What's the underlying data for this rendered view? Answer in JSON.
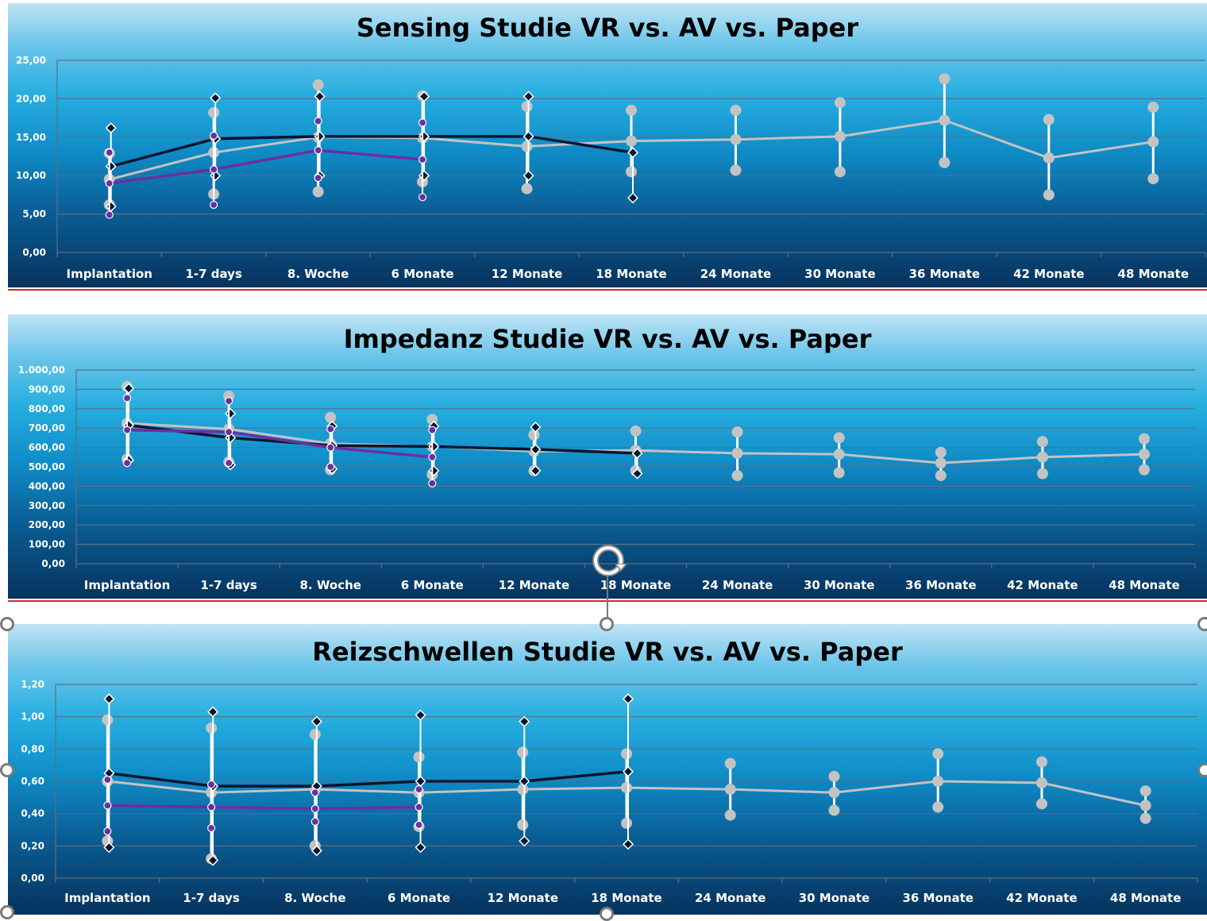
{
  "colors": {
    "vr": "#0b1530",
    "av": "#6a2fa0",
    "paper": "#c3c3c3",
    "gridline": "#5a6f86",
    "separator": "#d7262c"
  },
  "icons": {
    "rotate_handle": "rotate-icon",
    "selection_handle": "selection-handle-icon"
  },
  "chart_data": [
    {
      "type": "line",
      "title": "Sensing Studie VR vs. AV vs. Paper",
      "categories": [
        "Implantation",
        "1-7 days",
        "8. Woche",
        "6 Monate",
        "12 Monate",
        "18 Monate",
        "24 Monate",
        "30 Monate",
        "36 Monate",
        "42 Monate",
        "48 Monate"
      ],
      "ylim": [
        0,
        25
      ],
      "yticks": [
        "0,00",
        "5,00",
        "10,00",
        "15,00",
        "20,00",
        "25,00"
      ],
      "grid": true,
      "legend": "none",
      "error_bars": true,
      "series": [
        {
          "key": "vr",
          "values": [
            11.2,
            14.8,
            15.1,
            15.1,
            15.1,
            13.0,
            null,
            null,
            null,
            null,
            null
          ],
          "upper": [
            16.2,
            20.1,
            20.3,
            20.3,
            20.3,
            null,
            null,
            null,
            null,
            null,
            null
          ],
          "lower": [
            6.0,
            10.0,
            10.0,
            10.0,
            10.0,
            7.1,
            null,
            null,
            null,
            null,
            null
          ]
        },
        {
          "key": "av",
          "values": [
            9.0,
            10.8,
            13.3,
            12.1,
            null,
            null,
            null,
            null,
            null,
            null,
            null
          ],
          "upper": [
            13.0,
            15.2,
            17.1,
            16.9,
            null,
            null,
            null,
            null,
            null,
            null,
            null
          ],
          "lower": [
            4.9,
            6.2,
            9.7,
            7.2,
            null,
            null,
            null,
            null,
            null,
            null,
            null
          ]
        },
        {
          "key": "paper",
          "values": [
            9.5,
            13.0,
            15.0,
            14.9,
            13.8,
            14.5,
            14.7,
            15.1,
            17.2,
            12.3,
            14.4
          ],
          "upper": [
            12.9,
            18.2,
            21.8,
            20.4,
            19.0,
            18.5,
            18.5,
            19.5,
            22.6,
            17.3,
            18.9
          ],
          "lower": [
            6.2,
            7.6,
            7.9,
            9.2,
            8.3,
            10.5,
            10.7,
            10.5,
            11.7,
            7.5,
            9.6
          ]
        }
      ]
    },
    {
      "type": "line",
      "title": "Impedanz Studie VR vs. AV vs. Paper",
      "categories": [
        "Implantation",
        "1-7 days",
        "8. Woche",
        "6 Monate",
        "12 Monate",
        "18 Monate",
        "24 Monate",
        "30 Monate",
        "36 Monate",
        "42 Monate",
        "48 Monate"
      ],
      "ylim": [
        0,
        1000
      ],
      "yticks": [
        "0,00",
        "100,00",
        "200,00",
        "300,00",
        "400,00",
        "500,00",
        "600,00",
        "700,00",
        "800,00",
        "900,00",
        "1.000,00"
      ],
      "grid": true,
      "legend": "none",
      "error_bars": true,
      "series": [
        {
          "key": "vr",
          "values": [
            715,
            650,
            610,
            605,
            590,
            570,
            null,
            null,
            null,
            null,
            null
          ],
          "upper": [
            905,
            775,
            710,
            710,
            705,
            null,
            null,
            null,
            null,
            null,
            null
          ],
          "lower": [
            535,
            510,
            490,
            480,
            480,
            465,
            null,
            null,
            null,
            null,
            null
          ]
        },
        {
          "key": "av",
          "values": [
            690,
            680,
            600,
            550,
            null,
            null,
            null,
            null,
            null,
            null,
            null
          ],
          "upper": [
            855,
            840,
            695,
            690,
            null,
            null,
            null,
            null,
            null,
            null,
            null
          ],
          "lower": [
            520,
            520,
            500,
            415,
            null,
            null,
            null,
            null,
            null,
            null,
            null
          ]
        },
        {
          "key": "paper",
          "values": [
            725,
            695,
            620,
            605,
            580,
            585,
            570,
            565,
            520,
            550,
            565
          ],
          "upper": [
            915,
            865,
            755,
            745,
            665,
            685,
            680,
            650,
            575,
            630,
            645
          ],
          "lower": [
            540,
            525,
            485,
            460,
            480,
            480,
            455,
            470,
            455,
            465,
            485
          ]
        }
      ]
    },
    {
      "type": "line",
      "title": "Reizschwellen Studie VR vs. AV vs. Paper",
      "categories": [
        "Implantation",
        "1-7 days",
        "8. Woche",
        "6 Monate",
        "12 Monate",
        "18 Monate",
        "24 Monate",
        "30 Monate",
        "36 Monate",
        "42 Monate",
        "48 Monate"
      ],
      "ylim": [
        0,
        1.2
      ],
      "yticks": [
        "0,00",
        "0,20",
        "0,40",
        "0,60",
        "0,80",
        "1,00",
        "1,20"
      ],
      "grid": true,
      "legend": "none",
      "error_bars": true,
      "series": [
        {
          "key": "vr",
          "values": [
            0.65,
            0.57,
            0.57,
            0.6,
            0.6,
            0.66,
            null,
            null,
            null,
            null,
            null
          ],
          "upper": [
            1.11,
            1.03,
            0.97,
            1.01,
            0.97,
            1.11,
            null,
            null,
            null,
            null,
            null
          ],
          "lower": [
            0.19,
            0.11,
            0.17,
            0.19,
            0.23,
            0.21,
            null,
            null,
            null,
            null,
            null
          ]
        },
        {
          "key": "av",
          "values": [
            0.45,
            0.44,
            0.43,
            0.44,
            null,
            null,
            null,
            null,
            null,
            null,
            null
          ],
          "upper": [
            0.61,
            0.58,
            0.53,
            0.55,
            null,
            null,
            null,
            null,
            null,
            null,
            null
          ],
          "lower": [
            0.29,
            0.31,
            0.35,
            0.33,
            null,
            null,
            null,
            null,
            null,
            null,
            null
          ]
        },
        {
          "key": "paper",
          "values": [
            0.6,
            0.53,
            0.55,
            0.53,
            0.55,
            0.56,
            0.55,
            0.53,
            0.6,
            0.59,
            0.45
          ],
          "upper": [
            0.98,
            0.93,
            0.89,
            0.75,
            0.78,
            0.77,
            0.71,
            0.63,
            0.77,
            0.72,
            0.54
          ],
          "lower": [
            0.23,
            0.12,
            0.2,
            0.32,
            0.33,
            0.34,
            0.39,
            0.42,
            0.44,
            0.46,
            0.37
          ]
        }
      ]
    }
  ]
}
